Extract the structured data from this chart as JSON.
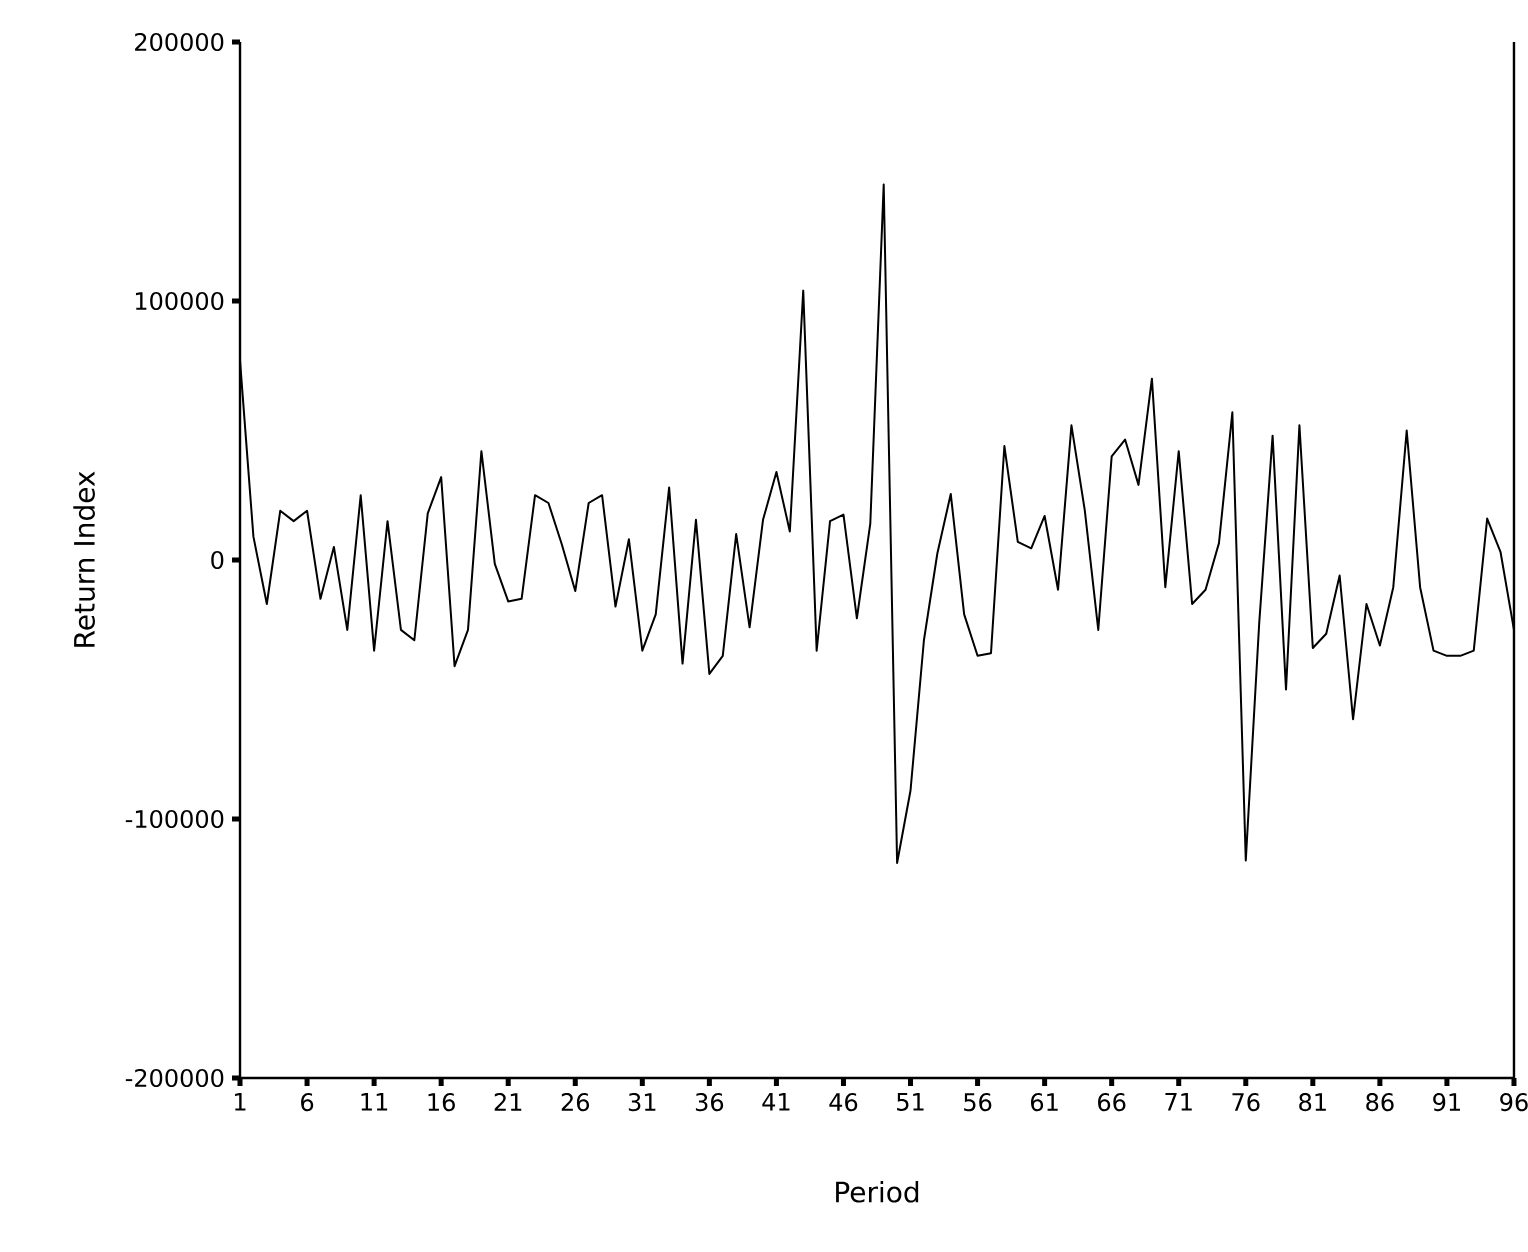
{
  "chart_data": {
    "type": "line",
    "xlabel": "Period",
    "ylabel": "Return Index",
    "x": [
      1,
      2,
      3,
      4,
      5,
      6,
      7,
      8,
      9,
      10,
      11,
      12,
      13,
      14,
      15,
      16,
      17,
      18,
      19,
      20,
      21,
      22,
      23,
      24,
      25,
      26,
      27,
      28,
      29,
      30,
      31,
      32,
      33,
      34,
      35,
      36,
      37,
      38,
      39,
      40,
      41,
      42,
      43,
      44,
      45,
      46,
      47,
      48,
      49,
      50,
      51,
      52,
      53,
      54,
      55,
      56,
      57,
      58,
      59,
      60,
      61,
      62,
      63,
      64,
      65,
      66,
      67,
      68,
      69,
      70,
      71,
      72,
      73,
      74,
      75,
      76,
      77,
      78,
      79,
      80,
      81,
      82,
      83,
      84,
      85,
      86,
      87,
      88,
      89,
      90,
      91,
      92,
      93,
      94,
      95,
      96
    ],
    "series": [
      {
        "color": "#000000",
        "values": [
          77000,
          9000,
          -17000,
          19000,
          15000,
          19000,
          -15000,
          5000,
          -27000,
          25000,
          -35000,
          15000,
          -27000,
          -31000,
          18000,
          32000,
          -41000,
          -27000,
          42000,
          -1500,
          -16000,
          -15000,
          25000,
          22000,
          6000,
          -12000,
          22000,
          25000,
          -18000,
          8000,
          -35000,
          -21000,
          28000,
          -40000,
          15500,
          -44000,
          -37000,
          10000,
          -26000,
          15500,
          34000,
          11000,
          104000,
          -35000,
          15000,
          17500,
          -22500,
          14000,
          145000,
          -117000,
          -89000,
          -31000,
          2500,
          25500,
          -21000,
          -37000,
          -36000,
          44000,
          7000,
          4500,
          17000,
          -11500,
          52000,
          19000,
          -27000,
          40000,
          46500,
          29000,
          70000,
          -10500,
          42000,
          -17000,
          -11500,
          6500,
          57000,
          -116000,
          -24500,
          48000,
          -50000,
          52000,
          -34000,
          -28500,
          -6000,
          -61500,
          -17000,
          -33000,
          -10500,
          50000,
          -10500,
          -35000,
          -37000,
          -37000,
          -35000,
          16000,
          3000,
          -27000
        ]
      }
    ],
    "xlim": [
      1,
      96
    ],
    "xticks": [
      1,
      6,
      11,
      16,
      21,
      26,
      31,
      36,
      41,
      46,
      51,
      56,
      61,
      66,
      71,
      76,
      81,
      86,
      91,
      96
    ],
    "ylim": [
      -200000,
      200000
    ],
    "yticks": [
      -200000,
      -100000,
      0,
      100000,
      200000
    ],
    "grid": false,
    "marker": "none",
    "line_style": "solid"
  }
}
